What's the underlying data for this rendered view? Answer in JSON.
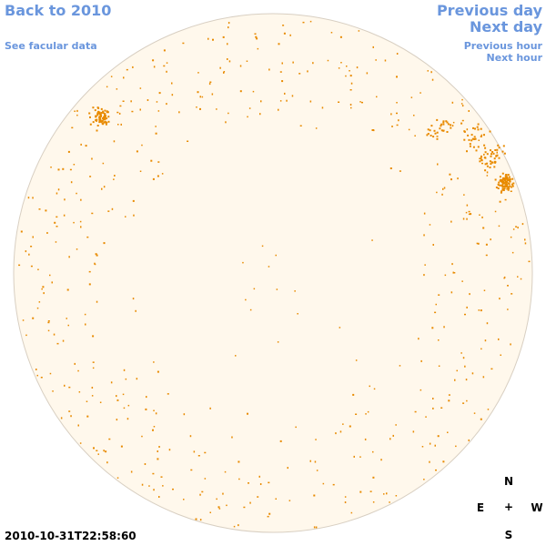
{
  "nav": {
    "back": "Back to 2010",
    "facular": "See facular data",
    "previous_day": "Previous day",
    "next_day": "Next day",
    "previous_hour": "Previous hour",
    "next_hour": "Next hour"
  },
  "timestamp": "2010-10-31T22:58:60",
  "compass": {
    "n": "N",
    "e": "E",
    "center": "+",
    "w": "W",
    "s": "S"
  },
  "colors": {
    "disk_fill": "#fff8ec",
    "disk_stroke": "#d8cfc2",
    "region": "#e88a00",
    "link": "#6a96dd"
  }
}
